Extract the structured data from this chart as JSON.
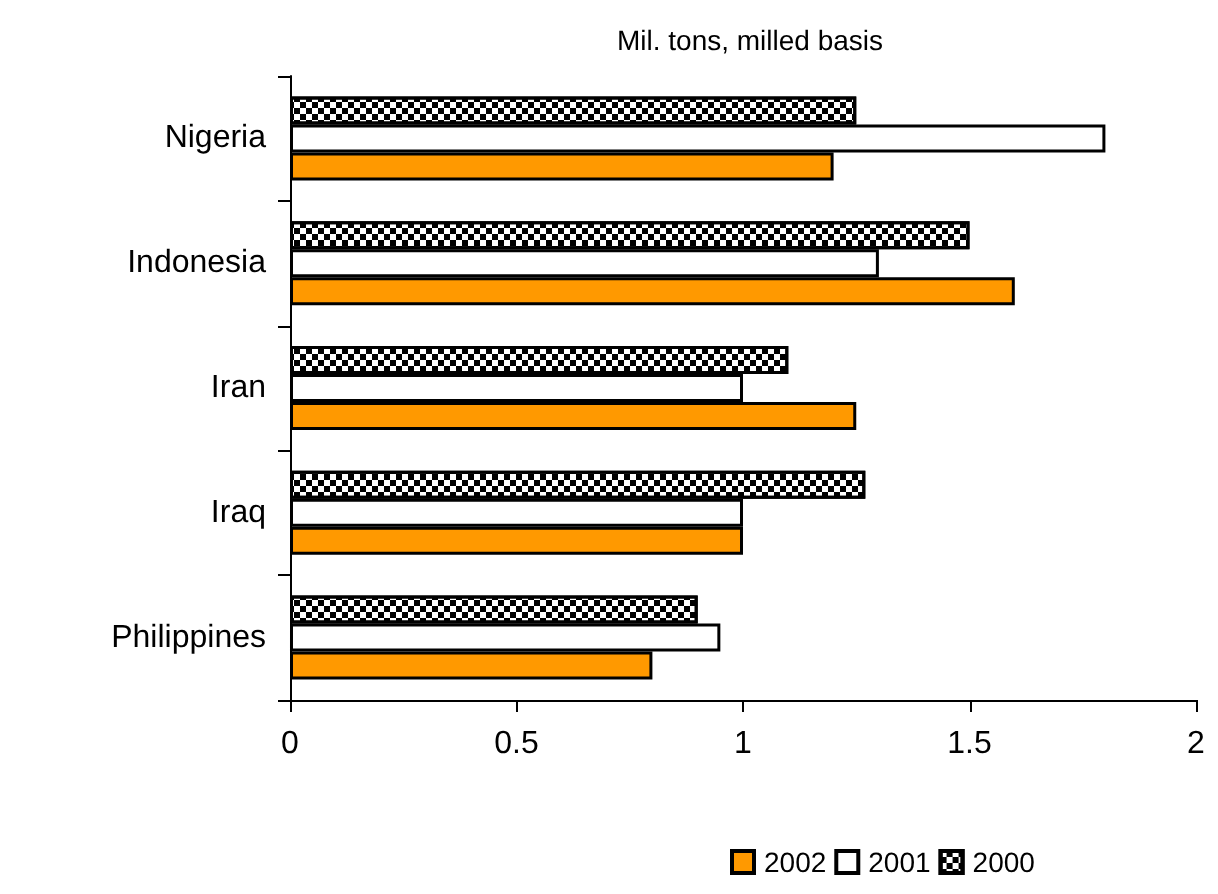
{
  "chart_data": {
    "type": "bar",
    "orientation": "horizontal",
    "title": "Mil. tons, milled basis",
    "categories": [
      "Nigeria",
      "Indonesia",
      "Iran",
      "Iraq",
      "Philippines"
    ],
    "series": [
      {
        "name": "2002",
        "color": "#ff9900",
        "values": [
          1.2,
          1.6,
          1.25,
          1.0,
          0.8
        ]
      },
      {
        "name": "2001",
        "color": "#ffffff",
        "values": [
          1.8,
          1.3,
          1.0,
          1.0,
          0.95
        ]
      },
      {
        "name": "2000",
        "color": "#000000",
        "values": [
          1.25,
          1.5,
          1.1,
          1.27,
          0.9
        ]
      }
    ],
    "xlim": [
      0,
      2
    ],
    "xticks": [
      0,
      0.5,
      1,
      1.5,
      2
    ],
    "grid": false,
    "legend": "bottom"
  }
}
